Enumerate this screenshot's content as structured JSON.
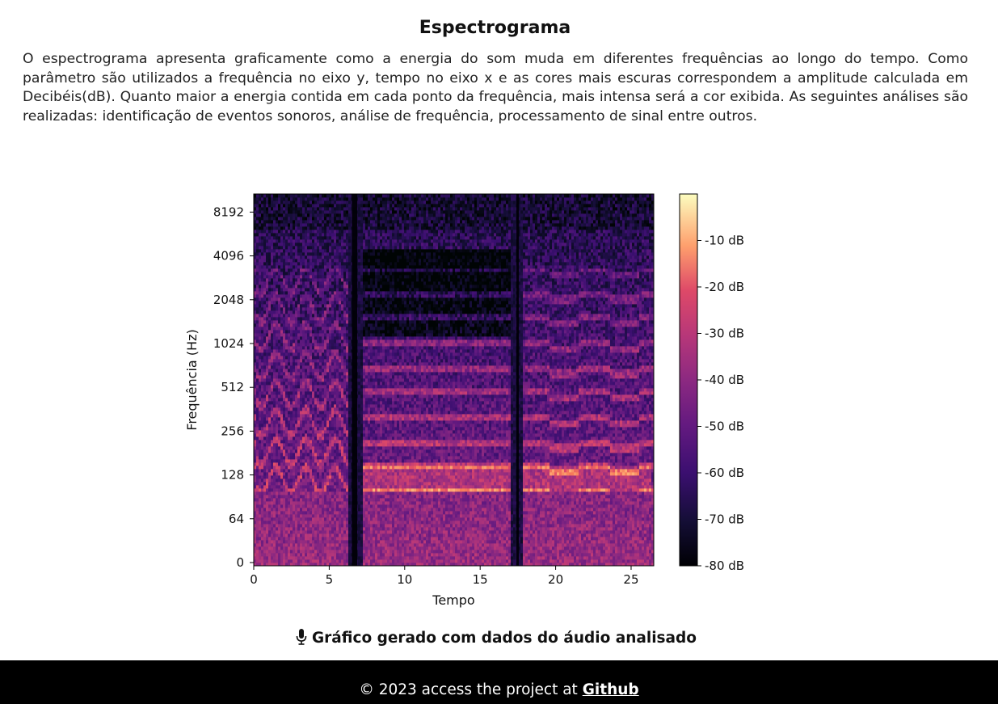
{
  "page": {
    "title": "Espectrograma",
    "description": "O espectrograma apresenta graficamente como a energia do som muda em diferentes frequências ao longo do tempo. Como parâmetro são utilizados a frequência no eixo y, tempo no eixo x e as cores mais escuras correspondem a amplitude calculada em Decibéis(dB). Quanto maior a energia contida em cada ponto da frequência, mais intensa será a cor exibida. As seguintes análises são realizadas: identificação de eventos sonoros, análise de frequência, processamento de sinal entre outros.",
    "caption": "Gráfico gerado com dados do áudio analisado",
    "caption_icon": "microphone-icon"
  },
  "footer": {
    "text": "© 2023 access the project at",
    "link_label": "Github"
  },
  "chart_data": {
    "type": "heatmap",
    "title": "",
    "xlabel": "Tempo",
    "ylabel": "Frequência (Hz)",
    "x_ticks": [
      "0",
      "5",
      "10",
      "15",
      "20",
      "25"
    ],
    "y_ticks": [
      "0",
      "64",
      "128",
      "256",
      "512",
      "1024",
      "2048",
      "4096",
      "8192"
    ],
    "xlim": [
      0,
      26.5
    ],
    "y_scale": "log-like (0, 64 ... 8192 Hz)",
    "colorbar": {
      "label_ticks": [
        "-10 dB",
        "-20 dB",
        "-30 dB",
        "-40 dB",
        "-50 dB",
        "-60 dB",
        "-70 dB",
        "-80 dB"
      ],
      "range_db": [
        -80,
        0
      ],
      "colormap": "magma"
    },
    "segments": [
      {
        "start": 0.2,
        "end": 6.2,
        "pattern": "oscillating harmonics"
      },
      {
        "start": 7.2,
        "end": 17.1,
        "pattern": "steady harmonics"
      },
      {
        "start": 17.8,
        "end": 26.3,
        "pattern": "modulated harmonics"
      }
    ],
    "silent_gaps": [
      {
        "start": 6.2,
        "end": 7.2
      },
      {
        "start": 17.1,
        "end": 17.8
      }
    ]
  }
}
